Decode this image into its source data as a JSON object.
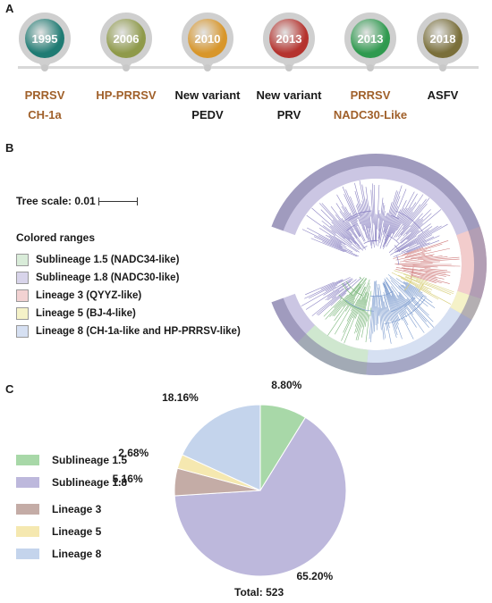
{
  "panel_a": {
    "label": "A",
    "events": [
      {
        "year": "1995",
        "line1": "PRRSV",
        "line2": "CH-1a",
        "color": "#1f7b73",
        "text_color": "#a0602a"
      },
      {
        "year": "2006",
        "line1": "HP-PRRSV",
        "line2": "",
        "color": "#8f9a4a",
        "text_color": "#a0602a"
      },
      {
        "year": "2010",
        "line1": "New variant",
        "line2": "PEDV",
        "color": "#d8962a",
        "text_color": "#1a1a1a"
      },
      {
        "year": "2013",
        "line1": "New variant",
        "line2": "PRV",
        "color": "#b5332e",
        "text_color": "#1a1a1a"
      },
      {
        "year": "2013",
        "line1": "PRRSV",
        "line2": "NADC30-Like",
        "color": "#2f9a4f",
        "text_color": "#a0602a"
      },
      {
        "year": "2018",
        "line1": "ASFV",
        "line2": "",
        "color": "#7a6f3a",
        "text_color": "#1a1a1a"
      }
    ]
  },
  "panel_b": {
    "label": "B",
    "tree_scale": "Tree scale: 0.01",
    "legend_title": "Colored ranges",
    "ranges": [
      {
        "label": "Sublineage 1.5 (NADC34-like)",
        "color": "#d9ecd9"
      },
      {
        "label": "Sublineage 1.8 (NADC30-like)",
        "color": "#d8d4ea"
      },
      {
        "label": "Lineage 3 (QYYZ-like)",
        "color": "#f2d2d2"
      },
      {
        "label": "Lineage 5 (BJ-4-like)",
        "color": "#f5f2c8"
      },
      {
        "label": "Lineage 8 (CH-1a-like and HP-PRRSV-like)",
        "color": "#d6e0f2"
      }
    ]
  },
  "panel_c": {
    "label": "C",
    "total": "Total: 523",
    "chart_data": {
      "type": "pie",
      "title": "",
      "categories": [
        "Sublineage 1.5",
        "Sublineage 1.8",
        "Lineage 3",
        "Lineage 5",
        "Lineage 8"
      ],
      "values": [
        8.8,
        65.2,
        5.16,
        2.68,
        18.16
      ],
      "labels": [
        "8.80%",
        "65.20%",
        "5.16%",
        "2.68%",
        "18.16%"
      ],
      "colors": [
        "#a8d8a8",
        "#bdb8dc",
        "#c4aca6",
        "#f5e8b0",
        "#c4d4ec"
      ]
    }
  }
}
